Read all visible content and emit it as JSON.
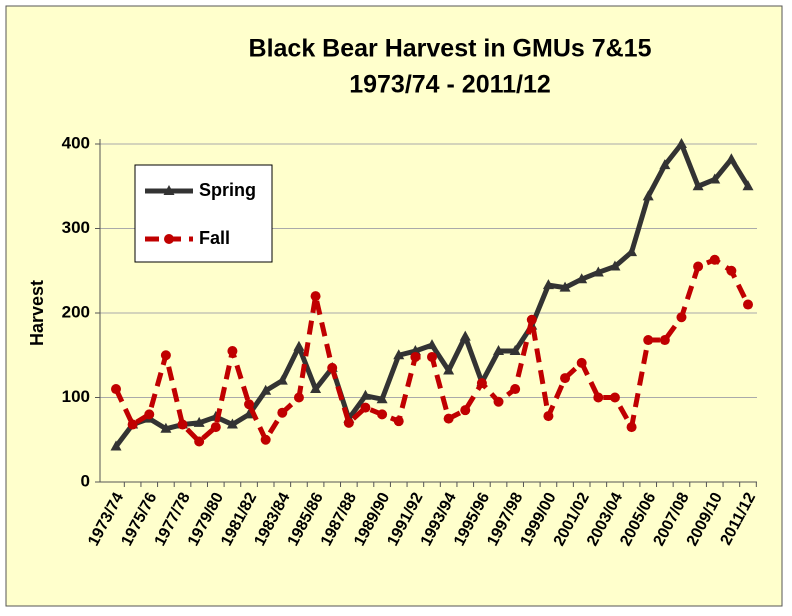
{
  "chart_data": {
    "type": "line",
    "title": "Black Bear Harvest in GMUs 7&15",
    "subtitle": "1973/74  - 2011/12",
    "y_label": "Harvest",
    "categories": [
      "1973/74",
      null,
      "1975/76",
      null,
      "1977/78",
      null,
      "1979/80",
      null,
      "1981/82",
      null,
      "1983/84",
      null,
      "1985/86",
      null,
      "1987/88",
      null,
      "1989/90",
      null,
      "1991/92",
      null,
      "1993/94",
      null,
      "1995/96",
      null,
      "1997/98",
      null,
      "1999/00",
      null,
      "2001/02",
      null,
      "2003/04",
      null,
      "2005/06",
      null,
      "2007/08",
      null,
      "2009/10",
      null,
      "2011/12"
    ],
    "series": [
      {
        "name": "Spring",
        "color": "#333333",
        "marker": "triangle",
        "dashed": false,
        "values": [
          42,
          68,
          75,
          63,
          68,
          70,
          77,
          68,
          80,
          108,
          120,
          160,
          110,
          135,
          75,
          102,
          98,
          150,
          155,
          162,
          132,
          172,
          118,
          155,
          155,
          185,
          233,
          230,
          240,
          248,
          255,
          272,
          338,
          375,
          400,
          350,
          358,
          382,
          350
        ]
      },
      {
        "name": "Fall",
        "color": "#c00000",
        "marker": "circle",
        "dashed": true,
        "values": [
          110,
          68,
          80,
          150,
          68,
          48,
          65,
          155,
          92,
          50,
          82,
          100,
          220,
          135,
          70,
          88,
          80,
          72,
          148,
          148,
          75,
          85,
          117,
          95,
          110,
          192,
          78,
          123,
          141,
          100,
          100,
          65,
          168,
          168,
          195,
          255,
          263,
          250,
          210
        ]
      }
    ],
    "ylim": [
      0,
      400
    ],
    "yticks": [
      0,
      100,
      200,
      300,
      400
    ],
    "grid": true,
    "legend": "upper left"
  }
}
